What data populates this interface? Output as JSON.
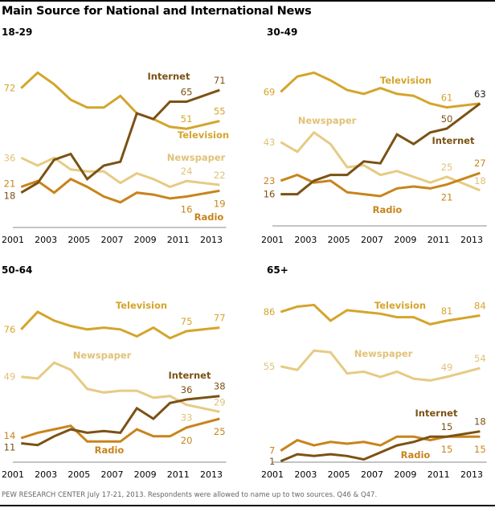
{
  "title": "Main Source for National and International News",
  "footer": "PEW RESEARCH CENTER July 17-21, 2013. Respondents were allowed to name up to two sources. Q46 & Q47.",
  "colors": {
    "Television": "#d4a52c",
    "Internet": "#7b5214",
    "Newspaper": "#e6cb84",
    "Radio": "#c8841c"
  },
  "chart_data": [
    {
      "type": "line",
      "title": "18-29",
      "x": [
        2001,
        2002,
        2003,
        2004,
        2005,
        2006,
        2007,
        2008,
        2009,
        2010,
        2011,
        2013
      ],
      "xticks": [
        "2001",
        "2003",
        "2005",
        "2007",
        "2009",
        "2011",
        "2013"
      ],
      "series": [
        {
          "name": "Television",
          "values": [
            72,
            80,
            74,
            66,
            62,
            62,
            68,
            59,
            56,
            52,
            51,
            55
          ]
        },
        {
          "name": "Internet",
          "values": [
            18,
            23,
            35,
            38,
            25,
            32,
            34,
            59,
            56,
            65,
            65,
            71
          ]
        },
        {
          "name": "Newspaper",
          "values": [
            36,
            32,
            36,
            30,
            29,
            29,
            23,
            28,
            25,
            21,
            24,
            22
          ]
        },
        {
          "name": "Radio",
          "values": [
            21,
            24,
            18,
            25,
            21,
            16,
            13,
            18,
            17,
            15,
            16,
            19
          ]
        }
      ],
      "labels": [
        {
          "series": "Television",
          "i": 0,
          "text": "72"
        },
        {
          "series": "Newspaper",
          "i": 0,
          "text": "36"
        },
        {
          "series": "Radio",
          "i": 0,
          "text": "21"
        },
        {
          "series": "Internet",
          "i": 0,
          "text": "18"
        },
        {
          "series": "Internet",
          "i": 10,
          "text": "65"
        },
        {
          "series": "Internet",
          "i": 11,
          "text": "71"
        },
        {
          "series": "Television",
          "i": 10,
          "text": "51"
        },
        {
          "series": "Television",
          "i": 11,
          "text": "55"
        },
        {
          "series": "Newspaper",
          "i": 10,
          "text": "24"
        },
        {
          "series": "Newspaper",
          "i": 11,
          "text": "22"
        },
        {
          "series": "Radio",
          "i": 10,
          "text": "16"
        },
        {
          "series": "Radio",
          "i": 11,
          "text": "19"
        }
      ]
    },
    {
      "type": "line",
      "title": "30-49",
      "x": [
        2001,
        2002,
        2003,
        2004,
        2005,
        2006,
        2007,
        2008,
        2009,
        2010,
        2011,
        2013
      ],
      "xticks": [
        "2001",
        "2003",
        "2005",
        "2007",
        "2009",
        "2011",
        "2013"
      ],
      "series": [
        {
          "name": "Television",
          "values": [
            69,
            77,
            79,
            75,
            70,
            68,
            71,
            68,
            67,
            63,
            61,
            63
          ]
        },
        {
          "name": "Internet",
          "values": [
            16,
            16,
            23,
            26,
            26,
            33,
            32,
            47,
            42,
            48,
            50,
            63
          ]
        },
        {
          "name": "Newspaper",
          "values": [
            43,
            38,
            48,
            42,
            30,
            31,
            26,
            28,
            25,
            22,
            25,
            18
          ]
        },
        {
          "name": "Radio",
          "values": [
            23,
            26,
            22,
            23,
            17,
            16,
            15,
            19,
            20,
            19,
            21,
            27
          ]
        }
      ],
      "labels": [
        {
          "series": "Television",
          "i": 0,
          "text": "69"
        },
        {
          "series": "Newspaper",
          "i": 0,
          "text": "43"
        },
        {
          "series": "Radio",
          "i": 0,
          "text": "23"
        },
        {
          "series": "Internet",
          "i": 0,
          "text": "16"
        },
        {
          "series": "Television",
          "i": 10,
          "text": "61"
        },
        {
          "series": "Internet",
          "i": 11,
          "text": "63"
        },
        {
          "series": "Internet",
          "i": 10,
          "text": "50"
        },
        {
          "series": "Newspaper",
          "i": 10,
          "text": "25"
        },
        {
          "series": "Radio",
          "i": 11,
          "text": "27"
        },
        {
          "series": "Newspaper",
          "i": 11,
          "text": "18"
        },
        {
          "series": "Radio",
          "i": 10,
          "text": "21"
        }
      ]
    },
    {
      "type": "line",
      "title": "50-64",
      "x": [
        2001,
        2002,
        2003,
        2004,
        2005,
        2006,
        2007,
        2008,
        2009,
        2010,
        2011,
        2013
      ],
      "xticks": [
        "2001",
        "2003",
        "2005",
        "2007",
        "2009",
        "2011",
        "2013"
      ],
      "series": [
        {
          "name": "Television",
          "values": [
            76,
            86,
            81,
            78,
            76,
            77,
            76,
            72,
            77,
            71,
            75,
            77
          ]
        },
        {
          "name": "Newspaper",
          "values": [
            49,
            48,
            57,
            53,
            42,
            40,
            41,
            41,
            37,
            38,
            33,
            29
          ]
        },
        {
          "name": "Internet",
          "values": [
            11,
            10,
            15,
            19,
            17,
            18,
            17,
            31,
            25,
            34,
            36,
            38
          ]
        },
        {
          "name": "Radio",
          "values": [
            14,
            17,
            19,
            21,
            12,
            12,
            12,
            19,
            15,
            15,
            20,
            25
          ]
        }
      ],
      "labels": [
        {
          "series": "Television",
          "i": 0,
          "text": "76"
        },
        {
          "series": "Newspaper",
          "i": 0,
          "text": "49"
        },
        {
          "series": "Radio",
          "i": 0,
          "text": "14"
        },
        {
          "series": "Internet",
          "i": 0,
          "text": "11"
        },
        {
          "series": "Television",
          "i": 10,
          "text": "75"
        },
        {
          "series": "Television",
          "i": 11,
          "text": "77"
        },
        {
          "series": "Internet",
          "i": 10,
          "text": "36"
        },
        {
          "series": "Internet",
          "i": 11,
          "text": "38"
        },
        {
          "series": "Newspaper",
          "i": 10,
          "text": "33"
        },
        {
          "series": "Newspaper",
          "i": 11,
          "text": "29"
        },
        {
          "series": "Radio",
          "i": 10,
          "text": "20"
        },
        {
          "series": "Radio",
          "i": 11,
          "text": "25"
        }
      ]
    },
    {
      "type": "line",
      "title": "65+",
      "x": [
        2001,
        2002,
        2003,
        2004,
        2005,
        2006,
        2007,
        2008,
        2009,
        2010,
        2011,
        2013
      ],
      "xticks": [
        "2001",
        "2003",
        "2005",
        "2007",
        "2009",
        "2011",
        "2013"
      ],
      "series": [
        {
          "name": "Television",
          "values": [
            86,
            89,
            90,
            81,
            87,
            86,
            85,
            83,
            83,
            79,
            81,
            84
          ]
        },
        {
          "name": "Newspaper",
          "values": [
            55,
            53,
            64,
            63,
            51,
            52,
            49,
            52,
            48,
            47,
            49,
            54
          ]
        },
        {
          "name": "Internet",
          "values": [
            1,
            5,
            4,
            5,
            4,
            2,
            6,
            10,
            12,
            15,
            15,
            18
          ]
        },
        {
          "name": "Radio",
          "values": [
            7,
            13,
            10,
            12,
            11,
            12,
            10,
            15,
            15,
            13,
            15,
            15
          ]
        }
      ],
      "labels": [
        {
          "series": "Television",
          "i": 0,
          "text": "86"
        },
        {
          "series": "Newspaper",
          "i": 0,
          "text": "55"
        },
        {
          "series": "Radio",
          "i": 0,
          "text": "7"
        },
        {
          "series": "Internet",
          "i": 0,
          "text": "1"
        },
        {
          "series": "Television",
          "i": 10,
          "text": "81"
        },
        {
          "series": "Television",
          "i": 11,
          "text": "84"
        },
        {
          "series": "Newspaper",
          "i": 10,
          "text": "49"
        },
        {
          "series": "Newspaper",
          "i": 11,
          "text": "54"
        },
        {
          "series": "Internet",
          "i": 10,
          "text": "15"
        },
        {
          "series": "Internet",
          "i": 11,
          "text": "18"
        },
        {
          "series": "Radio",
          "i": 10,
          "text": "15"
        },
        {
          "series": "Radio",
          "i": 11,
          "text": "15"
        }
      ]
    }
  ]
}
